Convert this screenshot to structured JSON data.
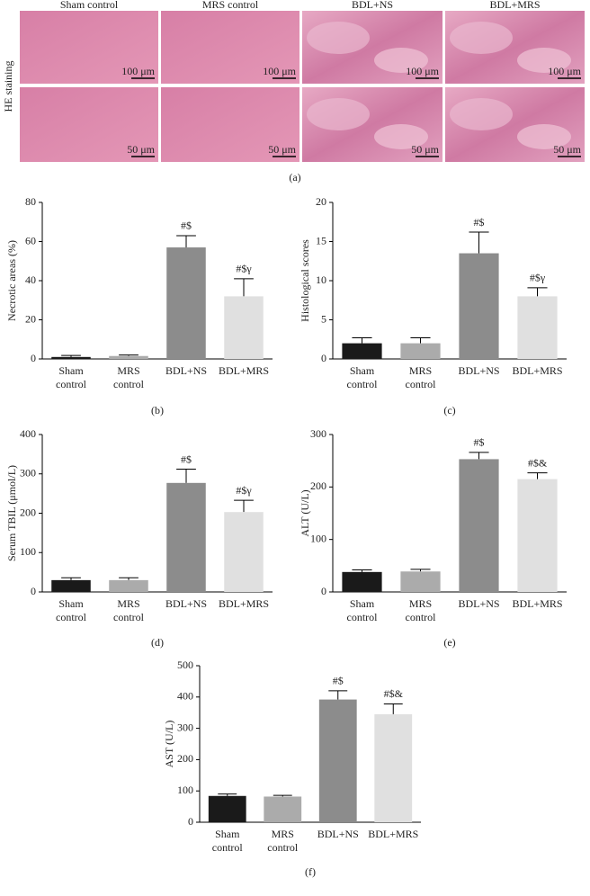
{
  "panel_a": {
    "columns": [
      "Sham control",
      "MRS control",
      "BDL+NS",
      "BDL+MRS"
    ],
    "row_label": "HE staining",
    "scale_bars": [
      "100 μm",
      "50 μm"
    ],
    "caption": "(a)"
  },
  "chart_data": [
    {
      "type": "bar",
      "caption": "(b)",
      "ylabel": "Necrotic areas (%)",
      "categories": [
        "Sham control",
        "MRS control",
        "BDL+NS",
        "BDL+MRS"
      ],
      "values": [
        1,
        1.5,
        57,
        32
      ],
      "errors": [
        0.8,
        0.5,
        6,
        9
      ],
      "value_annotations": [
        null,
        null,
        "#$",
        "#$γ"
      ],
      "colors": [
        "#1a1a1a",
        "#ababab",
        "#8c8c8c",
        "#e0e0e0"
      ],
      "ylim": [
        0,
        80
      ],
      "yticks": [
        0,
        20,
        40,
        60,
        80
      ]
    },
    {
      "type": "bar",
      "caption": "(c)",
      "ylabel": "Histological scores",
      "categories": [
        "Sham control",
        "MRS control",
        "BDL+NS",
        "BDL+MRS"
      ],
      "values": [
        2,
        2,
        13.5,
        8
      ],
      "errors": [
        0.7,
        0.7,
        2.7,
        1.1
      ],
      "value_annotations": [
        null,
        null,
        "#$",
        "#$γ"
      ],
      "colors": [
        "#1a1a1a",
        "#ababab",
        "#8c8c8c",
        "#e0e0e0"
      ],
      "ylim": [
        0,
        20
      ],
      "yticks": [
        0,
        5,
        10,
        15,
        20
      ]
    },
    {
      "type": "bar",
      "caption": "(d)",
      "ylabel": "Serum TBIL (μmol/L)",
      "categories": [
        "Sham control",
        "MRS control",
        "BDL+NS",
        "BDL+MRS"
      ],
      "values": [
        30,
        30,
        277,
        203
      ],
      "errors": [
        6,
        6,
        35,
        30
      ],
      "value_annotations": [
        null,
        null,
        "#$",
        "#$γ"
      ],
      "colors": [
        "#1a1a1a",
        "#ababab",
        "#8c8c8c",
        "#e0e0e0"
      ],
      "ylim": [
        0,
        400
      ],
      "yticks": [
        0,
        100,
        200,
        300,
        400
      ]
    },
    {
      "type": "bar",
      "caption": "(e)",
      "ylabel": "ALT (U/L)",
      "categories": [
        "Sham control",
        "MRS control",
        "BDL+NS",
        "BDL+MRS"
      ],
      "values": [
        38,
        39,
        253,
        215
      ],
      "errors": [
        4,
        4,
        13,
        12
      ],
      "value_annotations": [
        null,
        null,
        "#$",
        "#$&"
      ],
      "colors": [
        "#1a1a1a",
        "#ababab",
        "#8c8c8c",
        "#e0e0e0"
      ],
      "ylim": [
        0,
        300
      ],
      "yticks": [
        0,
        100,
        200,
        300
      ]
    },
    {
      "type": "bar",
      "caption": "(f)",
      "ylabel": "AST (U/L)",
      "categories": [
        "Sham control",
        "MRS control",
        "BDL+NS",
        "BDL+MRS"
      ],
      "values": [
        84,
        82,
        392,
        345
      ],
      "errors": [
        6,
        4,
        28,
        33
      ],
      "value_annotations": [
        null,
        null,
        "#$",
        "#$&"
      ],
      "colors": [
        "#1a1a1a",
        "#ababab",
        "#8c8c8c",
        "#e0e0e0"
      ],
      "ylim": [
        0,
        500
      ],
      "yticks": [
        0,
        100,
        200,
        300,
        400,
        500
      ]
    }
  ]
}
